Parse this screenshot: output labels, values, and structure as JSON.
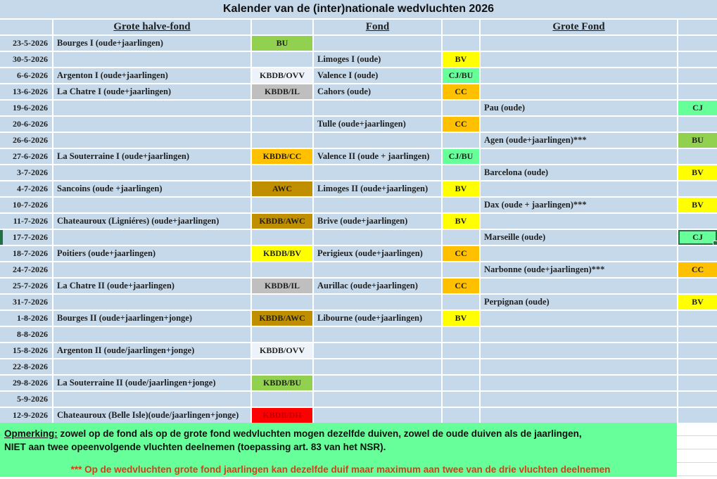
{
  "title": "Kalender van de (inter)nationale wedvluchten 2026",
  "columns": {
    "ghf": "Grote halve-fond",
    "fond": "Fond",
    "gf": "Grote Fond"
  },
  "colors": {
    "row_blue": "#c6d9ea",
    "badge_green": "#92d050",
    "badge_yellow": "#ffff00",
    "badge_lightgreen": "#66ff99",
    "badge_orange": "#ffc000",
    "badge_gold": "#bf8f00",
    "badge_gray": "#bfbfbf",
    "badge_lightblue": "#eef3f9",
    "badge_red": "#ff0000",
    "selection_green": "#217346",
    "note_green": "#66ff99",
    "note_red_text": "#d23f18"
  },
  "rows": [
    {
      "date": "23-5-2026",
      "ghf": "Bourges I (oude+jaarlingen)",
      "ghf_badge": {
        "label": "BU",
        "bg": "#92d050",
        "fg": "#1f1f1f"
      },
      "fond": "",
      "fond_badge": null,
      "gf": "",
      "gf_badge": null
    },
    {
      "date": "30-5-2026",
      "ghf": "",
      "ghf_badge": null,
      "fond": "Limoges I (oude)",
      "fond_badge": {
        "label": "BV",
        "bg": "#ffff00",
        "fg": "#1f1f1f"
      },
      "gf": "",
      "gf_badge": null
    },
    {
      "date": "6-6-2026",
      "ghf": "Argenton I (oude+jaarlingen)",
      "ghf_badge": {
        "label": "KBDB/OVV",
        "bg": "#eef3f9",
        "fg": "#1f1f1f"
      },
      "fond": "Valence I (oude)",
      "fond_badge": {
        "label": "CJ/BU",
        "bg": "#66ff99",
        "fg": "#1f1f1f"
      },
      "gf": "",
      "gf_badge": null
    },
    {
      "date": "13-6-2026",
      "ghf": "La Chatre I (oude+jaarlingen)",
      "ghf_badge": {
        "label": "KBDB/IL",
        "bg": "#bfbfbf",
        "fg": "#1f1f1f"
      },
      "fond": "Cahors (oude)",
      "fond_badge": {
        "label": "CC",
        "bg": "#ffc000",
        "fg": "#1f1f1f"
      },
      "gf": "",
      "gf_badge": null
    },
    {
      "date": "19-6-2026",
      "ghf": "",
      "ghf_badge": null,
      "fond": "",
      "fond_badge": null,
      "gf": "Pau (oude)",
      "gf_badge": {
        "label": "CJ",
        "bg": "#66ff99",
        "fg": "#1f1f1f"
      }
    },
    {
      "date": "20-6-2026",
      "ghf": "",
      "ghf_badge": null,
      "fond": "Tulle (oude+jaarlingen)",
      "fond_badge": {
        "label": "CC",
        "bg": "#ffc000",
        "fg": "#1f1f1f"
      },
      "gf": "",
      "gf_badge": null
    },
    {
      "date": "26-6-2026",
      "ghf": "",
      "ghf_badge": null,
      "fond": "",
      "fond_badge": null,
      "gf": "Agen (oude+jaarlingen)***",
      "gf_badge": {
        "label": "BU",
        "bg": "#92d050",
        "fg": "#1f1f1f"
      }
    },
    {
      "date": "27-6-2026",
      "ghf": "La Souterraine I (oude+jaarlingen)",
      "ghf_badge": {
        "label": "KBDB/CC",
        "bg": "#ffc000",
        "fg": "#1f1f1f"
      },
      "fond": "Valence II (oude + jaarlingen)",
      "fond_badge": {
        "label": "CJ/BU",
        "bg": "#66ff99",
        "fg": "#1f1f1f"
      },
      "gf": "",
      "gf_badge": null
    },
    {
      "date": "3-7-2026",
      "ghf": "",
      "ghf_badge": null,
      "fond": "",
      "fond_badge": null,
      "gf": "Barcelona (oude)",
      "gf_badge": {
        "label": "BV",
        "bg": "#ffff00",
        "fg": "#1f1f1f"
      }
    },
    {
      "date": "4-7-2026",
      "ghf": "Sancoins (oude +jaarlingen)",
      "ghf_badge": {
        "label": "AWC",
        "bg": "#bf8f00",
        "fg": "#1f1f1f"
      },
      "fond": "Limoges II (oude+jaarlingen)",
      "fond_badge": {
        "label": "BV",
        "bg": "#ffff00",
        "fg": "#1f1f1f"
      },
      "gf": "",
      "gf_badge": null
    },
    {
      "date": "10-7-2026",
      "ghf": "",
      "ghf_badge": null,
      "fond": "",
      "fond_badge": null,
      "gf": "Dax (oude + jaarlingen)***",
      "gf_badge": {
        "label": "BV",
        "bg": "#ffff00",
        "fg": "#1f1f1f"
      }
    },
    {
      "date": "11-7-2026",
      "ghf": "Chateauroux (Ligniéres) (oude+jaarlingen)",
      "ghf_badge": {
        "label": "KBDB/AWC",
        "bg": "#bf8f00",
        "fg": "#1f1f1f"
      },
      "fond": "Brive (oude+jaarlingen)",
      "fond_badge": {
        "label": "BV",
        "bg": "#ffff00",
        "fg": "#1f1f1f"
      },
      "gf": "",
      "gf_badge": null
    },
    {
      "date": "17-7-2026",
      "marker": true,
      "ghf": "",
      "ghf_badge": null,
      "fond": "",
      "fond_badge": null,
      "gf": "Marseille (oude)",
      "gf_badge": {
        "label": "CJ",
        "bg": "#66ff99",
        "fg": "#1f1f1f",
        "selected": true
      }
    },
    {
      "date": "18-7-2026",
      "ghf": "Poitiers (oude+jaarlingen)",
      "ghf_badge": {
        "label": "KBDB/BV",
        "bg": "#ffff00",
        "fg": "#1f1f1f"
      },
      "fond": "Perigieux (oude+jaarlingen)",
      "fond_badge": {
        "label": "CC",
        "bg": "#ffc000",
        "fg": "#1f1f1f"
      },
      "gf": "",
      "gf_badge": null
    },
    {
      "date": "24-7-2026",
      "ghf": "",
      "ghf_badge": null,
      "fond": "",
      "fond_badge": null,
      "gf": "Narbonne (oude+jaarlingen)***",
      "gf_badge": {
        "label": "CC",
        "bg": "#ffc000",
        "fg": "#1f1f1f"
      }
    },
    {
      "date": "25-7-2026",
      "ghf": "La Chatre II (oude+jaarlingen)",
      "ghf_badge": {
        "label": "KBDB/IL",
        "bg": "#bfbfbf",
        "fg": "#1f1f1f"
      },
      "fond": "Aurillac (oude+jaarlingen)",
      "fond_badge": {
        "label": "CC",
        "bg": "#ffc000",
        "fg": "#1f1f1f"
      },
      "gf": "",
      "gf_badge": null
    },
    {
      "date": "31-7-2026",
      "ghf": "",
      "ghf_badge": null,
      "fond": "",
      "fond_badge": null,
      "gf": "Perpignan (oude)",
      "gf_badge": {
        "label": "BV",
        "bg": "#ffff00",
        "fg": "#1f1f1f"
      }
    },
    {
      "date": "1-8-2026",
      "ghf": "Bourges II (oude+jaarlingen+jonge)",
      "ghf_badge": {
        "label": "KBDB/AWC",
        "bg": "#bf8f00",
        "fg": "#1f1f1f"
      },
      "fond": "Libourne (oude+jaarlingen)",
      "fond_badge": {
        "label": "BV",
        "bg": "#ffff00",
        "fg": "#1f1f1f"
      },
      "gf": "",
      "gf_badge": null
    },
    {
      "date": "8-8-2026",
      "ghf": "",
      "ghf_badge": null,
      "fond": "",
      "fond_badge": null,
      "gf": "",
      "gf_badge": null
    },
    {
      "date": "15-8-2026",
      "ghf": "Argenton II (oude/jaarlingen+jonge)",
      "ghf_badge": {
        "label": "KBDB/OVV",
        "bg": "#eef3f9",
        "fg": "#1f1f1f"
      },
      "fond": "",
      "fond_badge": null,
      "gf": "",
      "gf_badge": null
    },
    {
      "date": "22-8-2026",
      "ghf": "",
      "ghf_badge": null,
      "fond": "",
      "fond_badge": null,
      "gf": "",
      "gf_badge": null
    },
    {
      "date": "29-8-2026",
      "ghf": "La Souterraine II (oude/jaarlingen+jonge)",
      "ghf_badge": {
        "label": "KBDB/BU",
        "bg": "#92d050",
        "fg": "#1f1f1f"
      },
      "fond": "",
      "fond_badge": null,
      "gf": "",
      "gf_badge": null
    },
    {
      "date": "5-9-2026",
      "ghf": "",
      "ghf_badge": null,
      "fond": "",
      "fond_badge": null,
      "gf": "",
      "gf_badge": null
    },
    {
      "date": "12-9-2026",
      "ghf": "Chateauroux (Belle Isle)(oude/jaarlingen+jonge)",
      "ghf_badge": {
        "label": "KBDB/DH",
        "bg": "#ff0000",
        "fg": "#c00000"
      },
      "fond": "",
      "fond_badge": null,
      "gf": "",
      "gf_badge": null
    }
  ],
  "note": {
    "label": "Opmerking:",
    "line1": " zowel op de fond als op de grote fond wedvluchten mogen dezelfde duiven, zowel de oude duiven als de jaarlingen,",
    "line2": "NIET aan twee opeenvolgende vluchten deelnemen (toepassing art. 83 van het NSR).",
    "line3": "*** Op de wedvluchten grote fond jaarlingen kan dezelfde duif maar maximum aan twee van de drie vluchten deelnemen"
  }
}
